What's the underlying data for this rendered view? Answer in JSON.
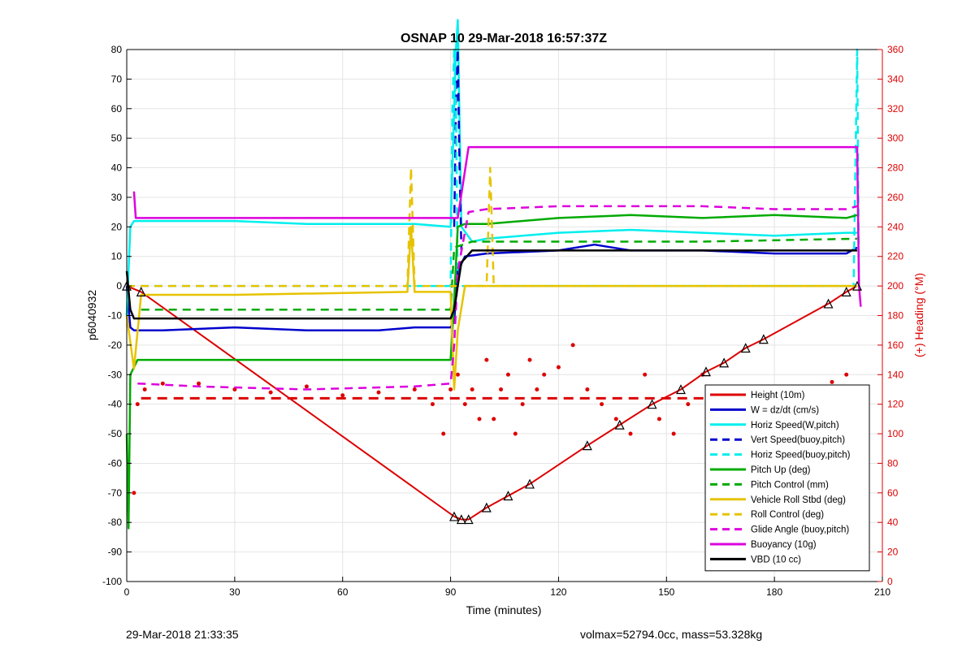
{
  "chart_data": {
    "type": "line",
    "title": "OSNAP 10 29-Mar-2018 16:57:37Z",
    "xlabel": "Time (minutes)",
    "ylabel_left": "p6040932",
    "ylabel_right": "(+) Heading (°M)",
    "xlim": [
      0,
      210
    ],
    "ylim_left": [
      -100,
      80
    ],
    "ylim_right": [
      0,
      360
    ],
    "xticks": [
      0,
      30,
      60,
      90,
      120,
      150,
      180,
      210
    ],
    "yticks_left": [
      -100,
      -90,
      -80,
      -70,
      -60,
      -50,
      -40,
      -30,
      -20,
      -10,
      0,
      10,
      20,
      30,
      40,
      50,
      60,
      70,
      80
    ],
    "yticks_right": [
      0,
      20,
      40,
      60,
      80,
      100,
      120,
      140,
      160,
      180,
      200,
      220,
      240,
      260,
      280,
      300,
      320,
      340,
      360
    ],
    "grid": true,
    "legend_position": "bottom-right",
    "series": [
      {
        "name": "Height (10m)",
        "color": "#dd0000",
        "style": "solid",
        "axis": "left",
        "x": [
          0,
          4,
          91,
          93,
          95,
          100,
          106,
          112,
          128,
          137,
          146,
          154,
          161,
          166,
          172,
          177,
          195,
          200,
          203
        ],
        "y": [
          0,
          -2,
          -78,
          -79,
          -79,
          -75,
          -71,
          -67,
          -54,
          -47,
          -40,
          -35,
          -29,
          -26,
          -21,
          -18,
          -6,
          -2,
          0
        ]
      },
      {
        "name": "W = dz/dt (cm/s)",
        "color": "#0000cc",
        "style": "solid",
        "axis": "left",
        "x": [
          0,
          1,
          2,
          10,
          30,
          50,
          70,
          80,
          90,
          91,
          92,
          94,
          100,
          120,
          130,
          140,
          160,
          180,
          200,
          203
        ],
        "y": [
          0,
          -14,
          -15,
          -15,
          -14,
          -15,
          -15,
          -14,
          -14,
          -12,
          5,
          10,
          11,
          12,
          14,
          12,
          12,
          11,
          11,
          13
        ]
      },
      {
        "name": "Horiz Speed(W,pitch)",
        "color": "#00eeee",
        "style": "solid",
        "axis": "left",
        "x": [
          0,
          1,
          2,
          10,
          30,
          50,
          70,
          80,
          90,
          91,
          91.5,
          92,
          93,
          96,
          100,
          120,
          140,
          160,
          180,
          200,
          203
        ],
        "y": [
          -10,
          20,
          22,
          22,
          22,
          21,
          21,
          21,
          20,
          60,
          80,
          90,
          20,
          15,
          16,
          18,
          19,
          18,
          17,
          18,
          18
        ]
      },
      {
        "name": "Vert Speed(buoy,pitch)",
        "color": "#0000cc",
        "style": "dashed",
        "axis": "left",
        "x": [
          91,
          91.5,
          92,
          92.5,
          93
        ],
        "y": [
          20,
          60,
          80,
          40,
          12
        ]
      },
      {
        "name": "Horiz Speed(buoy,pitch)",
        "color": "#00eeee",
        "style": "dashed",
        "axis": "left",
        "x": [
          0,
          90,
          90.5,
          91,
          91.5,
          92,
          202,
          203,
          203.5
        ],
        "y": [
          0,
          0,
          60,
          80,
          60,
          0,
          0,
          80,
          0
        ]
      },
      {
        "name": "Pitch Up (deg)",
        "color": "#00aa00",
        "style": "solid",
        "axis": "left",
        "x": [
          0,
          0.5,
          1,
          3,
          10,
          30,
          50,
          70,
          80,
          90,
          91,
          92,
          94,
          100,
          120,
          140,
          160,
          180,
          200,
          203
        ],
        "y": [
          -50,
          -82,
          -30,
          -25,
          -25,
          -25,
          -25,
          -25,
          -25,
          -25,
          -5,
          20,
          21,
          21,
          23,
          24,
          23,
          24,
          23,
          24
        ]
      },
      {
        "name": "Pitch Control (mm)",
        "color": "#00aa00",
        "style": "dashed",
        "axis": "left",
        "x": [
          4,
          90,
          91,
          96,
          120,
          160,
          203
        ],
        "y": [
          -8,
          -8,
          13,
          15,
          15,
          15,
          16
        ]
      },
      {
        "name": "Vehicle Roll Stbd (deg)",
        "color": "#e6c300",
        "style": "solid",
        "axis": "left",
        "x": [
          0,
          2,
          4,
          6,
          30,
          78,
          79,
          80,
          90,
          91,
          92,
          94,
          96,
          120,
          160,
          200,
          203
        ],
        "y": [
          -10,
          -28,
          -3,
          -3,
          -3,
          -2,
          20,
          -2,
          -2,
          -35,
          -15,
          0,
          0,
          0,
          0,
          0,
          0
        ]
      },
      {
        "name": "Roll Control (deg)",
        "color": "#e6c300",
        "style": "dashed",
        "axis": "left",
        "x": [
          0,
          78,
          79,
          80,
          90,
          100,
          101,
          102,
          203
        ],
        "y": [
          0,
          0,
          40,
          0,
          0,
          0,
          40,
          0,
          0
        ]
      },
      {
        "name": "Glide Angle (buoy,pitch)",
        "color": "#dd00dd",
        "style": "dashed",
        "axis": "left",
        "x": [
          3,
          20,
          50,
          80,
          90,
          91,
          92,
          95,
          100,
          120,
          140,
          160,
          180,
          200,
          203
        ],
        "y": [
          -33,
          -34,
          -35,
          -34,
          -33,
          -20,
          5,
          25,
          26,
          27,
          27,
          27,
          26,
          26,
          27
        ]
      },
      {
        "name": "Buoyancy (10g)",
        "color": "#dd00dd",
        "style": "solid",
        "axis": "left",
        "x": [
          2,
          2.5,
          3,
          92,
          95,
          203,
          203.5,
          204
        ],
        "y": [
          32,
          23,
          23,
          23,
          47,
          47,
          0,
          -7
        ]
      },
      {
        "name": "VBD (10 cc)",
        "color": "#000000",
        "style": "solid",
        "axis": "left",
        "x": [
          0,
          1,
          2,
          4,
          90,
          91,
          92,
          93,
          96,
          150,
          203
        ],
        "y": [
          5,
          -8,
          -11,
          -11,
          -11,
          -8,
          0,
          8,
          12,
          12,
          12
        ]
      }
    ],
    "heading": {
      "name": "(+) Heading (°M)",
      "color": "#dd0000",
      "axis": "right",
      "dots_x": [
        2,
        3,
        5,
        10,
        20,
        30,
        40,
        50,
        60,
        70,
        80,
        85,
        88,
        90,
        92,
        94,
        96,
        98,
        100,
        102,
        104,
        106,
        108,
        110,
        112,
        114,
        116,
        120,
        124,
        128,
        132,
        136,
        140,
        144,
        148,
        152,
        156,
        160,
        164,
        168,
        172,
        176,
        180,
        184,
        188,
        192,
        196,
        200,
        203
      ],
      "dots_y": [
        60,
        120,
        130,
        134,
        134,
        130,
        128,
        132,
        126,
        128,
        130,
        120,
        100,
        130,
        140,
        120,
        130,
        110,
        150,
        110,
        130,
        140,
        100,
        120,
        150,
        130,
        140,
        145,
        160,
        130,
        120,
        110,
        100,
        140,
        110,
        100,
        120,
        140,
        130,
        120,
        110,
        115,
        118,
        120,
        125,
        130,
        135,
        140,
        100
      ],
      "target": 124
    }
  },
  "footer": {
    "timestamp": "29-Mar-2018 21:33:35",
    "summary": "volmax=52794.0cc, mass=53.328kg"
  }
}
